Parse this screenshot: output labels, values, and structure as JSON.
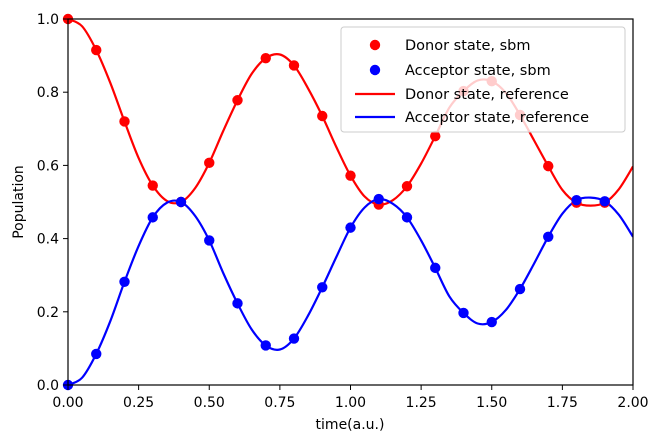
{
  "chart_data": {
    "type": "line",
    "xlabel": "time(a.u.)",
    "ylabel": "Population",
    "xlim": [
      0.0,
      2.0
    ],
    "ylim": [
      0.0,
      1.0
    ],
    "x_ticks": [
      "0.00",
      "0.25",
      "0.50",
      "0.75",
      "1.00",
      "1.25",
      "1.50",
      "1.75",
      "2.00"
    ],
    "y_ticks": [
      "0.0",
      "0.2",
      "0.4",
      "0.6",
      "0.8",
      "1.0"
    ],
    "legend_position": "top-right",
    "grid": false,
    "series": [
      {
        "name": "Donor state, sbm",
        "kind": "scatter",
        "color": "#ff0000",
        "x": [
          0.0,
          0.1,
          0.2,
          0.3,
          0.4,
          0.5,
          0.6,
          0.7,
          0.8,
          0.9,
          1.0,
          1.1,
          1.2,
          1.3,
          1.4,
          1.5,
          1.6,
          1.7,
          1.8,
          1.9
        ],
        "y": [
          1.0,
          0.915,
          0.72,
          0.545,
          0.5,
          0.607,
          0.778,
          0.893,
          0.873,
          0.735,
          0.572,
          0.493,
          0.543,
          0.68,
          0.803,
          0.83,
          0.738,
          0.598,
          0.498,
          0.498
        ]
      },
      {
        "name": "Acceptor state, sbm",
        "kind": "scatter",
        "color": "#0000ff",
        "x": [
          0.0,
          0.1,
          0.2,
          0.3,
          0.4,
          0.5,
          0.6,
          0.7,
          0.8,
          0.9,
          1.0,
          1.1,
          1.2,
          1.3,
          1.4,
          1.5,
          1.6,
          1.7,
          1.8,
          1.9
        ],
        "y": [
          0.0,
          0.085,
          0.282,
          0.458,
          0.5,
          0.395,
          0.223,
          0.108,
          0.127,
          0.267,
          0.43,
          0.508,
          0.458,
          0.32,
          0.197,
          0.172,
          0.262,
          0.405,
          0.505,
          0.502
        ]
      },
      {
        "name": "Donor state, reference",
        "kind": "line",
        "color": "#ff0000",
        "x": [
          0.0,
          0.05,
          0.1,
          0.15,
          0.2,
          0.25,
          0.3,
          0.35,
          0.4,
          0.45,
          0.5,
          0.55,
          0.6,
          0.65,
          0.7,
          0.75,
          0.8,
          0.85,
          0.9,
          0.95,
          1.0,
          1.05,
          1.1,
          1.15,
          1.2,
          1.25,
          1.3,
          1.35,
          1.4,
          1.45,
          1.5,
          1.55,
          1.6,
          1.65,
          1.7,
          1.75,
          1.8,
          1.85,
          1.9,
          1.95,
          2.0
        ],
        "y": [
          1.0,
          0.98,
          0.915,
          0.825,
          0.72,
          0.62,
          0.545,
          0.503,
          0.5,
          0.538,
          0.607,
          0.695,
          0.778,
          0.85,
          0.893,
          0.903,
          0.873,
          0.81,
          0.735,
          0.65,
          0.572,
          0.515,
          0.493,
          0.505,
          0.543,
          0.605,
          0.68,
          0.758,
          0.803,
          0.832,
          0.83,
          0.798,
          0.738,
          0.668,
          0.598,
          0.533,
          0.498,
          0.49,
          0.498,
          0.535,
          0.597
        ]
      },
      {
        "name": "Acceptor state, reference",
        "kind": "line",
        "color": "#0000ff",
        "x": [
          0.0,
          0.05,
          0.1,
          0.15,
          0.2,
          0.25,
          0.3,
          0.35,
          0.4,
          0.45,
          0.5,
          0.55,
          0.6,
          0.65,
          0.7,
          0.75,
          0.8,
          0.85,
          0.9,
          0.95,
          1.0,
          1.05,
          1.1,
          1.15,
          1.2,
          1.25,
          1.3,
          1.35,
          1.4,
          1.45,
          1.5,
          1.55,
          1.6,
          1.65,
          1.7,
          1.75,
          1.8,
          1.85,
          1.9,
          1.95,
          2.0
        ],
        "y": [
          0.0,
          0.02,
          0.085,
          0.175,
          0.282,
          0.38,
          0.458,
          0.498,
          0.5,
          0.462,
          0.395,
          0.305,
          0.223,
          0.152,
          0.108,
          0.097,
          0.127,
          0.19,
          0.267,
          0.35,
          0.43,
          0.485,
          0.508,
          0.495,
          0.458,
          0.395,
          0.32,
          0.242,
          0.197,
          0.168,
          0.172,
          0.205,
          0.262,
          0.332,
          0.405,
          0.468,
          0.505,
          0.512,
          0.502,
          0.465,
          0.405
        ]
      }
    ]
  }
}
